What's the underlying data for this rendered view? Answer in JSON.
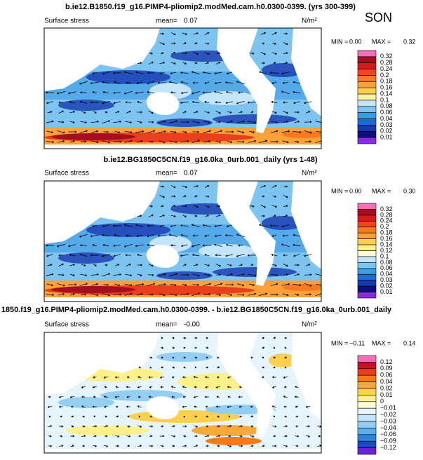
{
  "season": "SON",
  "panels": [
    {
      "title": "b.ie12.B1850.f19_g16.PIMP4-pliomip2.modMed.cam.h0.0300-0399. (yrs 300-399)",
      "field": "Surface stress",
      "mean_label": "mean=",
      "mean": "0.07",
      "units": "N/m²",
      "min_label": "MIN =",
      "min": "0.00",
      "max_label": "MAX =",
      "max": "0.32",
      "colorbar": {
        "labels": [
          "0.32",
          "0.28",
          "0.24",
          "0.2",
          "0.18",
          "0.16",
          "0.14",
          "0.1",
          "0.08",
          "0.06",
          "0.04",
          "0.03",
          "0.02",
          "0.01"
        ],
        "colors": [
          "#f46fb6",
          "#a50f22",
          "#d7191c",
          "#f0461e",
          "#f77a20",
          "#fba13a",
          "#fdd050",
          "#fef4a8",
          "#c4e4f8",
          "#7ec4f0",
          "#3a9ae4",
          "#2068d4",
          "#1838b0",
          "#0e0e80",
          "#8a2be2"
        ]
      }
    },
    {
      "title": "b.ie12.BG1850C5CN.f19_g16.0ka_0urb.001_daily (yrs 1-48)",
      "field": "Surface stress",
      "mean_label": "mean=",
      "mean": "0.07",
      "units": "N/m²",
      "min_label": "MIN =",
      "min": "0.00",
      "max_label": "MAX =",
      "max": "0.30",
      "colorbar": {
        "labels": [
          "0.32",
          "0.28",
          "0.24",
          "0.2",
          "0.18",
          "0.16",
          "0.14",
          "0.12",
          "0.1",
          "0.08",
          "0.06",
          "0.04",
          "0.03",
          "0.02",
          "0.01"
        ],
        "colors": [
          "#f46fb6",
          "#a50f22",
          "#d7191c",
          "#f0461e",
          "#f77a20",
          "#fba13a",
          "#fdd050",
          "#fef08a",
          "#fffbd2",
          "#c4e4f8",
          "#7ec4f0",
          "#3a9ae4",
          "#2068d4",
          "#1838b0",
          "#0e0e80",
          "#8a2be2"
        ]
      }
    },
    {
      "title": "1850.f19_g16.PIMP4-pliomip2.modMed.cam.h0.0300-0399. - b.ie12.BG1850C5CN.f19_g16.0ka_0urb.001_daily",
      "field": "Surface stress",
      "mean_label": "mean=",
      "mean": "-0.00",
      "units": "N/m²",
      "min_label": "MIN =",
      "min": "−0.11",
      "max_label": "MAX =",
      "max": "0.14",
      "colorbar": {
        "labels": [
          "0.12",
          "0.09",
          "0.06",
          "0.04",
          "0.02",
          "0.01",
          "0",
          "−0.01",
          "−0.02",
          "−0.03",
          "−0.04",
          "−0.06",
          "−0.09",
          "−0.12"
        ],
        "colors": [
          "#f46fb6",
          "#c8102a",
          "#e8401c",
          "#f57a1a",
          "#f9a83a",
          "#fdd050",
          "#fef08a",
          "#fffcd8",
          "#e6f5fc",
          "#c4e4f8",
          "#94cef2",
          "#5caeea",
          "#2c84dc",
          "#1a48c0",
          "#6a22d0"
        ]
      }
    }
  ]
}
